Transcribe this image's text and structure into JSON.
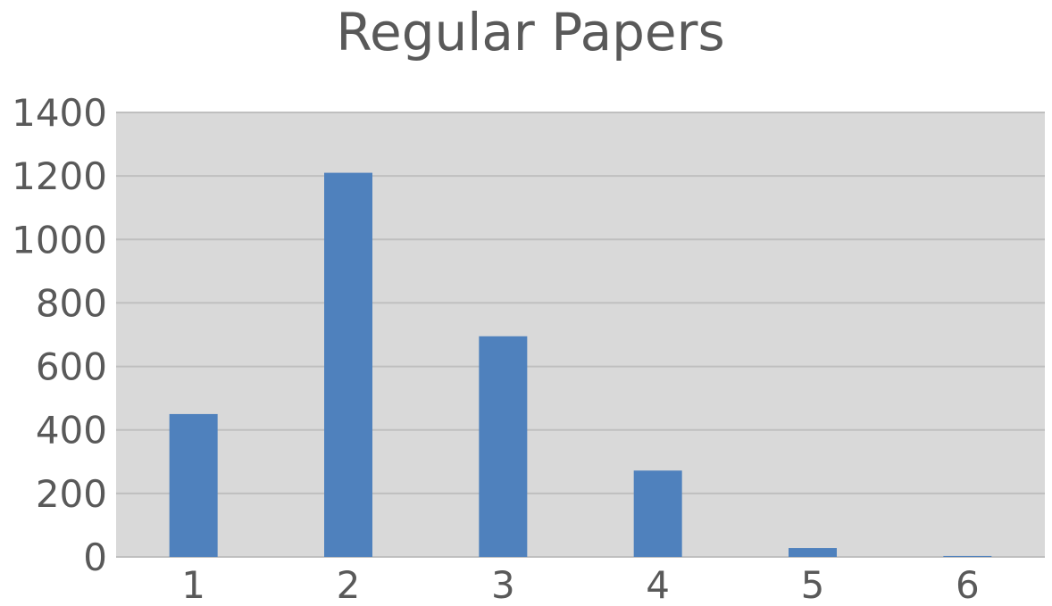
{
  "chart_data": {
    "type": "bar",
    "title": "Regular Papers",
    "xlabel": "",
    "ylabel": "",
    "categories": [
      "1",
      "2",
      "3",
      "4",
      "5",
      "6"
    ],
    "values": [
      450,
      1210,
      695,
      272,
      28,
      3
    ],
    "ylim": [
      0,
      1400
    ],
    "yticks": [
      "0",
      "200",
      "400",
      "600",
      "800",
      "1000",
      "1200",
      "1400"
    ],
    "grid": true,
    "legend": "none",
    "colors": {
      "bar": "#4F81BD",
      "plot_background": "#D9D9D9",
      "gridline": "#BFBFBF",
      "text": "#595959"
    }
  }
}
